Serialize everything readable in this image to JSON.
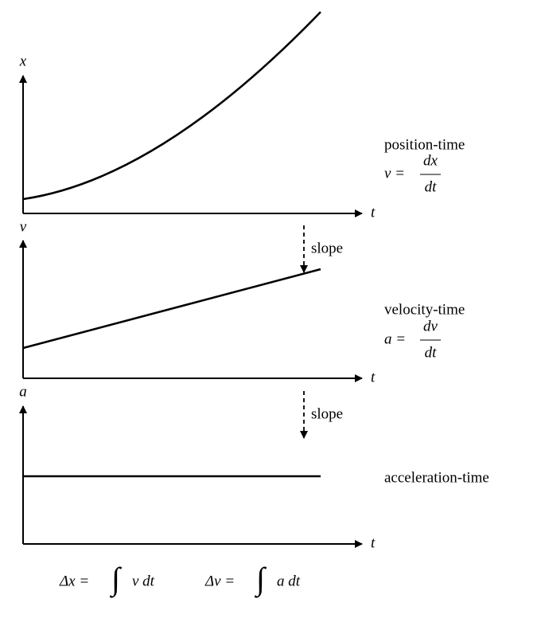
{
  "panels": [
    {
      "y_label": "x",
      "x_label": "t",
      "name": "position-time",
      "equation": {
        "lhs": "v =",
        "num": "dx",
        "den": "dt"
      }
    },
    {
      "y_label": "v",
      "x_label": "t",
      "name": "velocity-time",
      "equation": {
        "lhs": "a =",
        "num": "dv",
        "den": "dt"
      }
    },
    {
      "y_label": "a",
      "x_label": "t",
      "name": "acceleration-time"
    }
  ],
  "arrows": [
    {
      "label": "slope"
    },
    {
      "label": "slope"
    }
  ],
  "integrals": [
    {
      "lhs": "Δx =",
      "sign": "∫",
      "integrand": "v dt"
    },
    {
      "lhs": "Δv =",
      "sign": "∫",
      "integrand": "a dt"
    }
  ]
}
